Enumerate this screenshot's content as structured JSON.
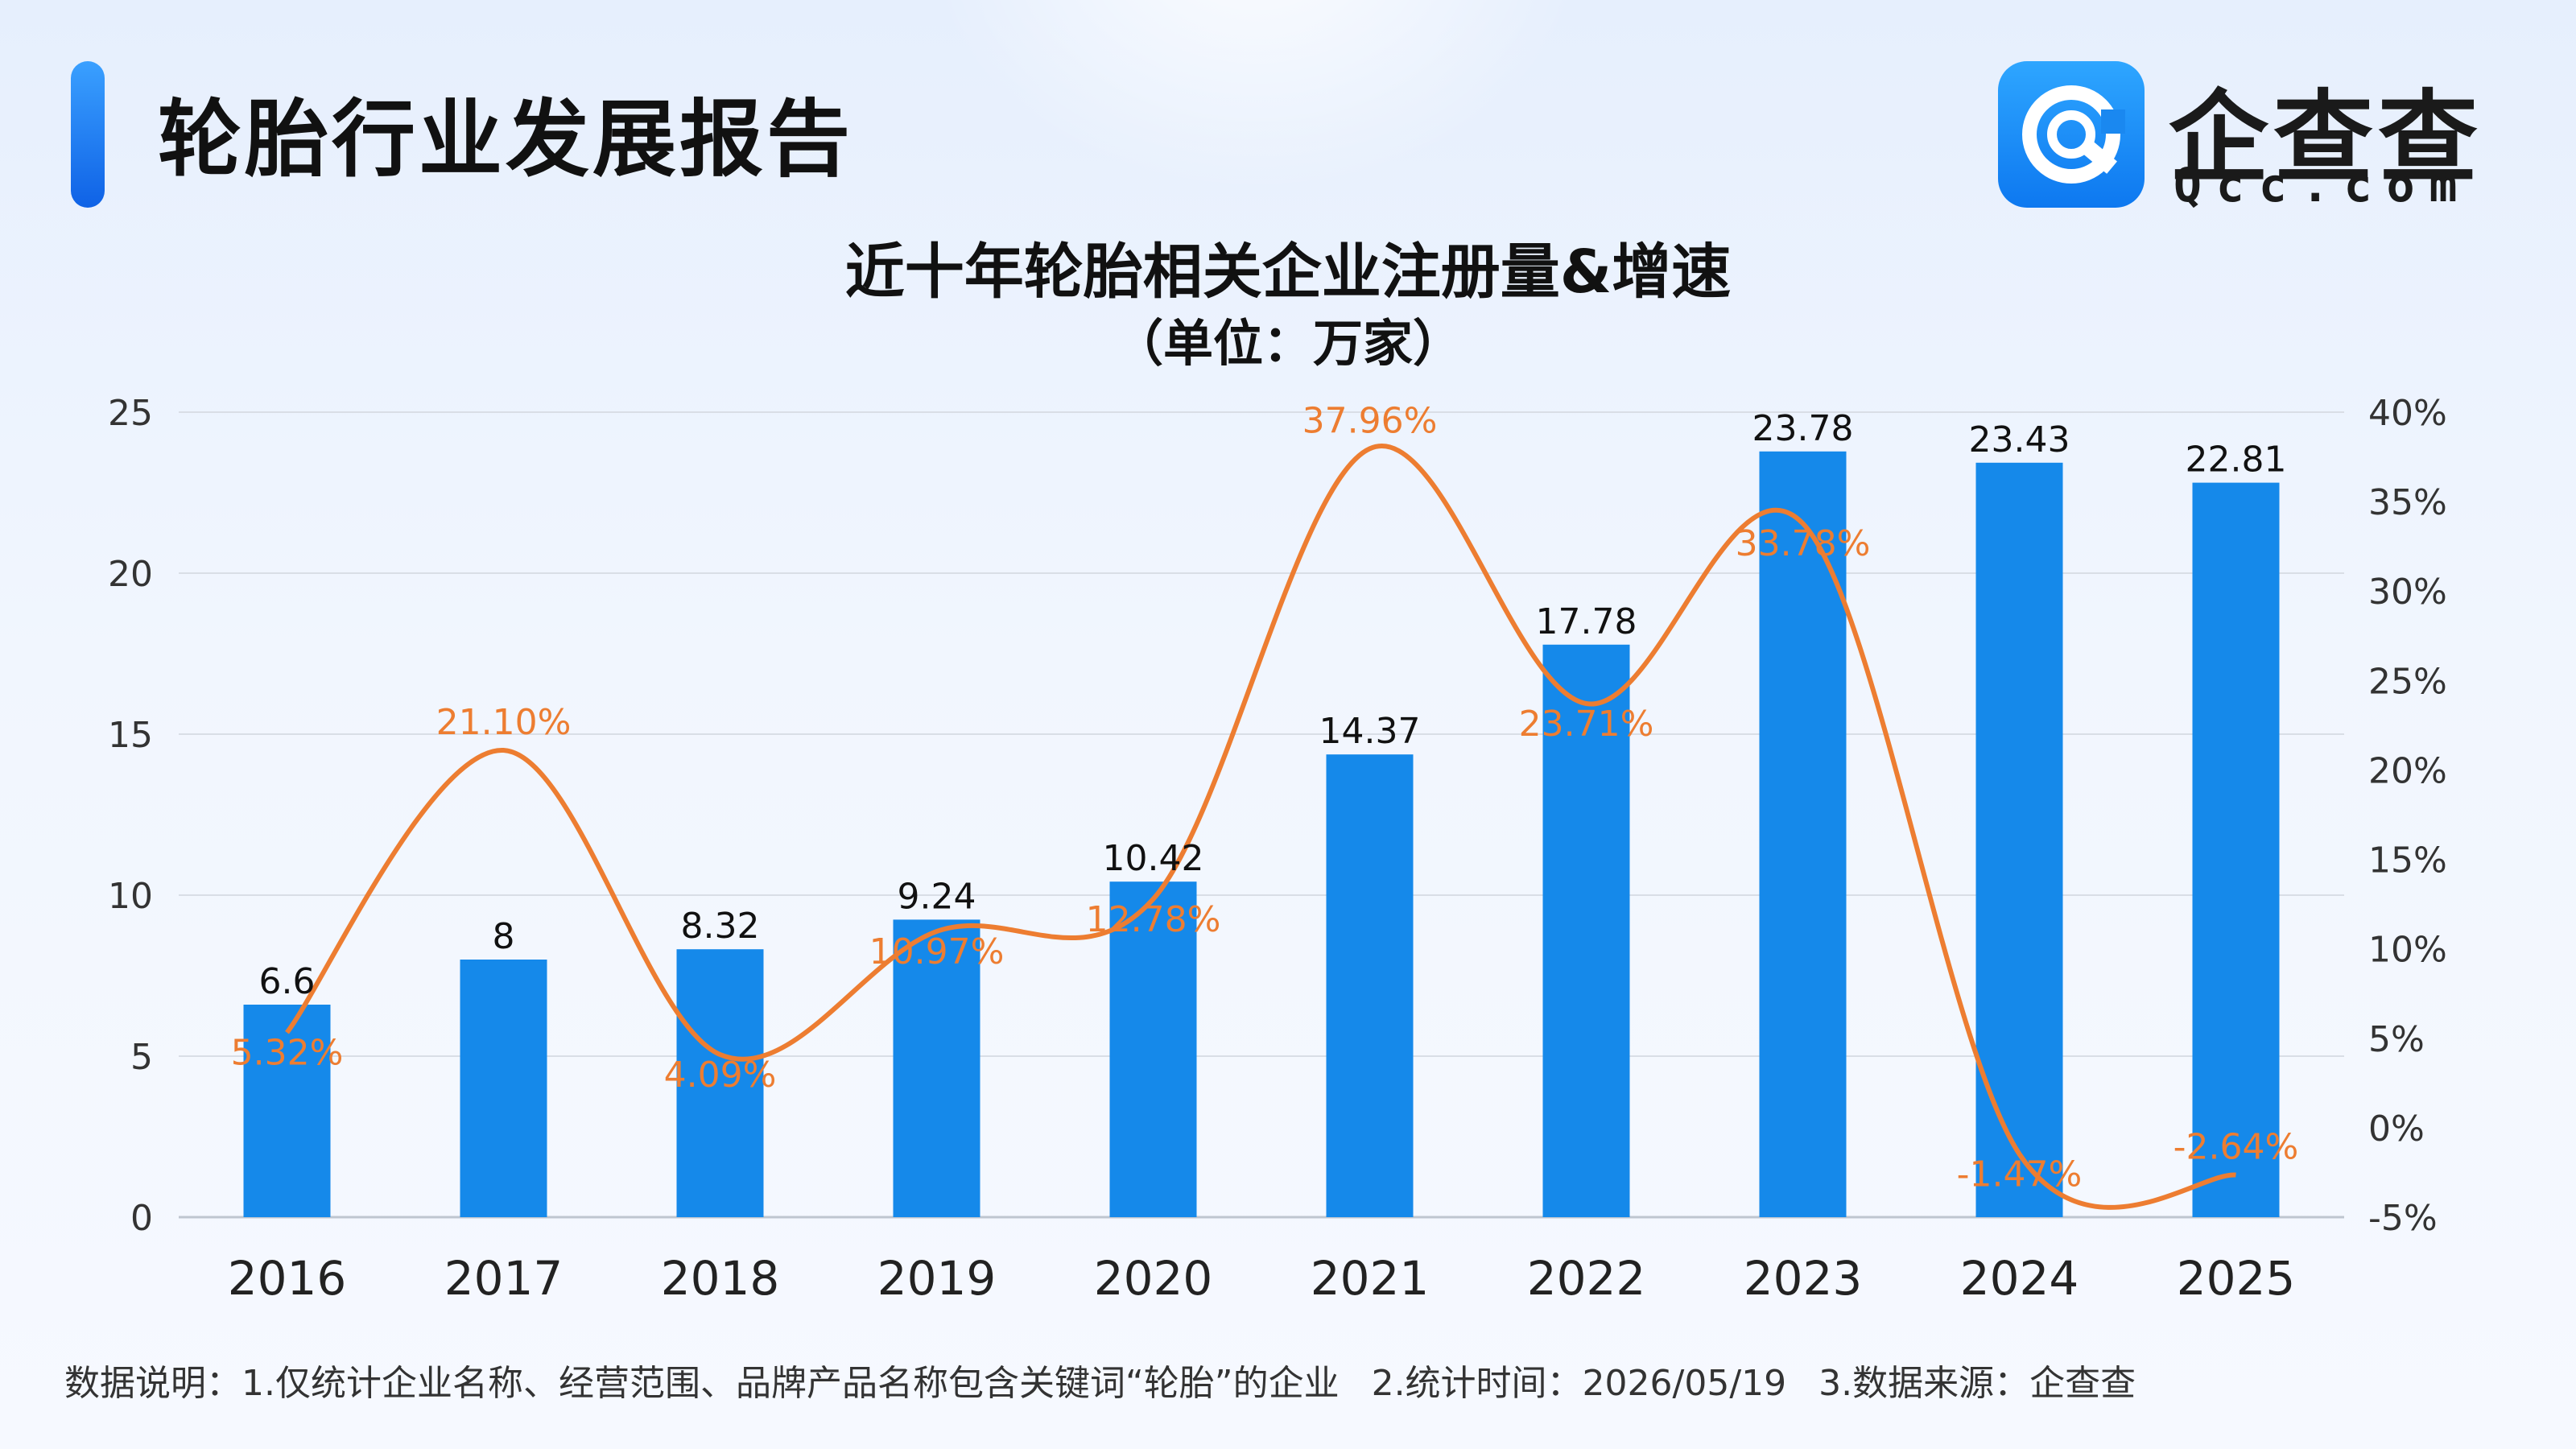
{
  "header": {
    "report_title": "轮胎行业发展报告",
    "logo_name": "企查查",
    "logo_domain": "Qcc.com"
  },
  "colors": {
    "bar": "#1589ea",
    "line": "#ed7d31",
    "accent": "#1a7ef2"
  },
  "footnote": {
    "prefix": "数据说明：",
    "note1": "1.仅统计企业名称、经营范围、品牌产品名称包含关键词“轮胎”的企业",
    "note2": "2.统计时间：2026/05/19",
    "note3": "3.数据来源：企查查"
  },
  "chart_data": {
    "type": "bar",
    "title": "近十年轮胎相关企业注册量&增速",
    "subtitle": "（单位：万家）",
    "categories": [
      "2016",
      "2017",
      "2018",
      "2019",
      "2020",
      "2021",
      "2022",
      "2023",
      "2024",
      "2025"
    ],
    "series": [
      {
        "type": "bar",
        "axis": "left",
        "values": [
          6.6,
          8,
          8.32,
          9.24,
          10.42,
          14.37,
          17.78,
          23.78,
          23.43,
          22.81
        ],
        "labels": [
          "6.6",
          "8",
          "8.32",
          "9.24",
          "10.42",
          "14.37",
          "17.78",
          "23.78",
          "23.43",
          "22.81"
        ]
      },
      {
        "type": "line",
        "axis": "right",
        "smooth": true,
        "values": [
          5.32,
          21.1,
          4.09,
          10.97,
          12.78,
          37.96,
          23.71,
          33.78,
          -1.47,
          -2.64
        ],
        "labels": [
          "5.32%",
          "21.10%",
          "4.09%",
          "10.97%",
          "12.78%",
          "37.96%",
          "23.71%",
          "33.78%",
          "-1.47%",
          "-2.64%"
        ]
      }
    ],
    "y_left": {
      "min": 0,
      "max": 25,
      "ticks": [
        "0",
        "5",
        "10",
        "15",
        "20",
        "25"
      ]
    },
    "y_right": {
      "min": -5,
      "max": 40,
      "ticks": [
        "-5%",
        "0%",
        "5%",
        "10%",
        "15%",
        "20%",
        "25%",
        "30%",
        "35%",
        "40%"
      ]
    },
    "grid": true,
    "legend": "none"
  }
}
